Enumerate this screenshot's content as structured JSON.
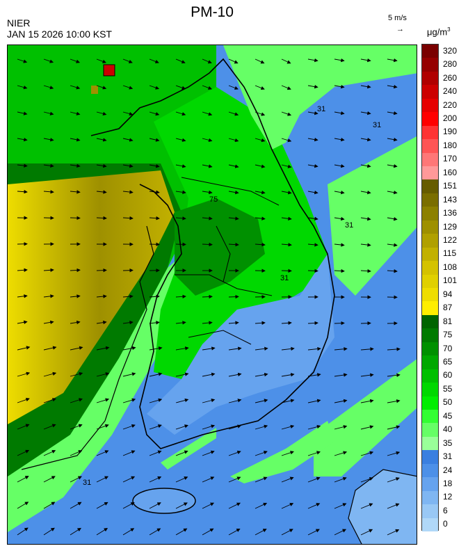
{
  "header": {
    "title": "PM-10",
    "org": "NIER",
    "timestamp": "JAN 15 2026 10:00 KST",
    "wind_scale_label": "5 m/s",
    "wind_scale_arrow": "→",
    "unit_base": "μg/m",
    "unit_exp": "3"
  },
  "contour_labels": [
    "31",
    "31",
    "31",
    "31",
    "31",
    "75"
  ],
  "legend": {
    "levels": [
      {
        "label": "320",
        "color": "#7a0000"
      },
      {
        "label": "280",
        "color": "#950000"
      },
      {
        "label": "260",
        "color": "#b00000"
      },
      {
        "label": "240",
        "color": "#cc0000"
      },
      {
        "label": "220",
        "color": "#e60000"
      },
      {
        "label": "200",
        "color": "#ff0000"
      },
      {
        "label": "190",
        "color": "#ff3333"
      },
      {
        "label": "180",
        "color": "#ff5555"
      },
      {
        "label": "170",
        "color": "#ff7777"
      },
      {
        "label": "160",
        "color": "#ff9999"
      },
      {
        "label": "151",
        "color": "#665c00"
      },
      {
        "label": "143",
        "color": "#7a6e00"
      },
      {
        "label": "136",
        "color": "#8c8000"
      },
      {
        "label": "129",
        "color": "#9e9000"
      },
      {
        "label": "122",
        "color": "#b0a000"
      },
      {
        "label": "115",
        "color": "#c2b100"
      },
      {
        "label": "108",
        "color": "#d4c200"
      },
      {
        "label": "101",
        "color": "#e0d000"
      },
      {
        "label": "94",
        "color": "#eedd00"
      },
      {
        "label": "87",
        "color": "#ffee00"
      },
      {
        "label": "81",
        "color": "#006400"
      },
      {
        "label": "75",
        "color": "#007a00"
      },
      {
        "label": "70",
        "color": "#009000"
      },
      {
        "label": "65",
        "color": "#00a800"
      },
      {
        "label": "60",
        "color": "#00c000"
      },
      {
        "label": "55",
        "color": "#00d800"
      },
      {
        "label": "50",
        "color": "#00ee00"
      },
      {
        "label": "45",
        "color": "#33ff33"
      },
      {
        "label": "40",
        "color": "#66ff66"
      },
      {
        "label": "35",
        "color": "#99ff99"
      },
      {
        "label": "31",
        "color": "#3a7fe0"
      },
      {
        "label": "24",
        "color": "#4d90e8"
      },
      {
        "label": "18",
        "color": "#66a3ee"
      },
      {
        "label": "12",
        "color": "#7fb6f2"
      },
      {
        "label": "6",
        "color": "#99c8f5"
      },
      {
        "label": "0",
        "color": "#b0d8f8"
      }
    ]
  },
  "map_colors": {
    "ocean_low": "#4d90e8",
    "ocean_mid": "#66a3ee",
    "green_light": "#66ff66",
    "green_mid": "#00c000",
    "green_dark": "#007a00",
    "yellow": "#eedd00",
    "olive": "#9e9000",
    "hotspot": "#cc0000"
  }
}
